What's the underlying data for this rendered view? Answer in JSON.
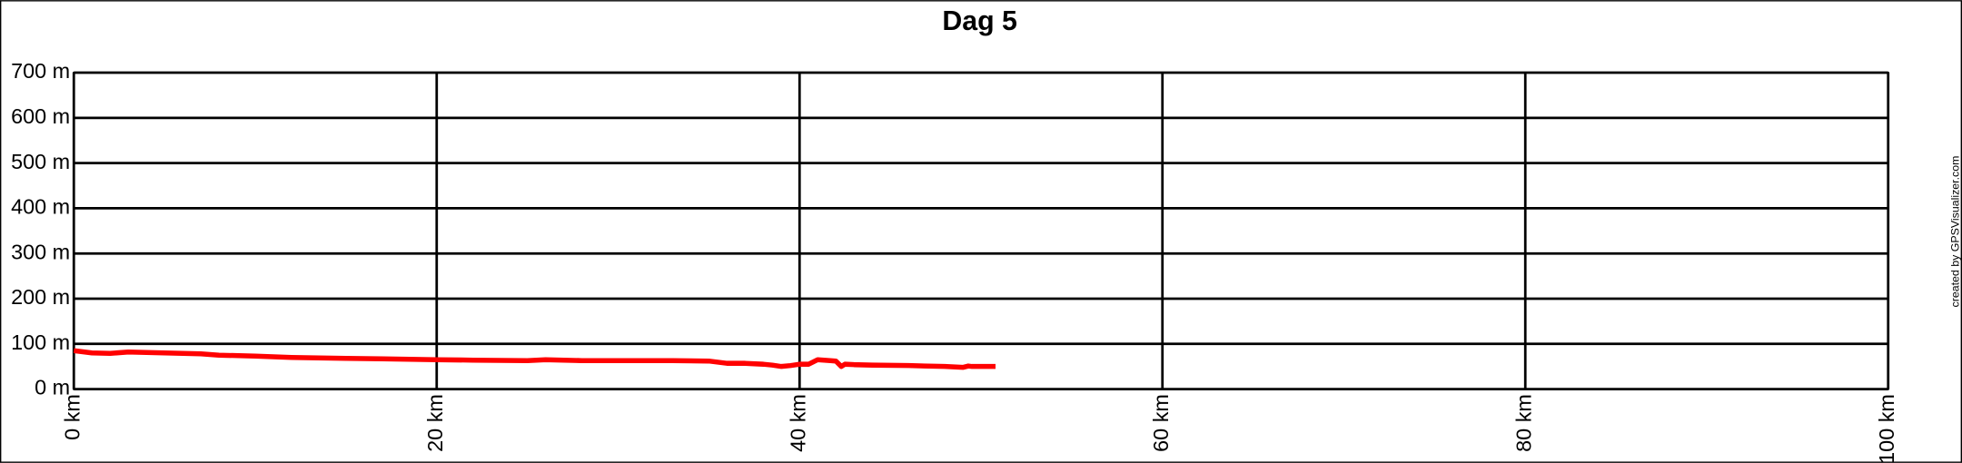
{
  "chart_data": {
    "type": "line",
    "title": "Dag 5",
    "credit": "created by GPSVisualizer.com",
    "x": [
      0,
      1,
      2,
      3,
      5,
      7,
      8,
      10,
      12,
      15,
      17,
      20,
      22,
      25,
      26,
      27,
      28,
      30,
      33,
      35,
      36,
      37,
      38,
      38.5,
      39,
      39.5,
      40,
      40.5,
      41,
      41.7,
      42,
      42.3,
      42.5,
      43,
      44,
      46,
      48,
      49,
      49.3,
      49.5,
      50,
      50.8
    ],
    "series": [
      {
        "name": "elevation",
        "color": "#ff0000",
        "values": [
          85,
          80,
          79,
          82,
          80,
          78,
          75,
          73,
          70,
          68,
          67,
          65,
          64,
          63,
          65,
          64,
          63,
          63,
          63,
          62,
          57,
          57,
          55,
          53,
          50,
          52,
          55,
          55,
          65,
          63,
          62,
          50,
          55,
          54,
          53,
          52,
          50,
          48,
          51,
          50,
          50,
          50
        ]
      }
    ],
    "xlim": [
      0,
      100
    ],
    "xticks": [
      {
        "value": 0,
        "label": "0 km"
      },
      {
        "value": 20,
        "label": "20 km"
      },
      {
        "value": 40,
        "label": "40 km"
      },
      {
        "value": 60,
        "label": "60 km"
      },
      {
        "value": 80,
        "label": "80 km"
      },
      {
        "value": 100,
        "label": "100 km"
      }
    ],
    "ylim": [
      0,
      700
    ],
    "yticks": [
      {
        "value": 0,
        "label": "0 m"
      },
      {
        "value": 100,
        "label": "100 m"
      },
      {
        "value": 200,
        "label": "200 m"
      },
      {
        "value": 300,
        "label": "300 m"
      },
      {
        "value": 400,
        "label": "400 m"
      },
      {
        "value": 500,
        "label": "500 m"
      },
      {
        "value": 600,
        "label": "600 m"
      },
      {
        "value": 700,
        "label": "700 m"
      }
    ],
    "grid": true
  }
}
